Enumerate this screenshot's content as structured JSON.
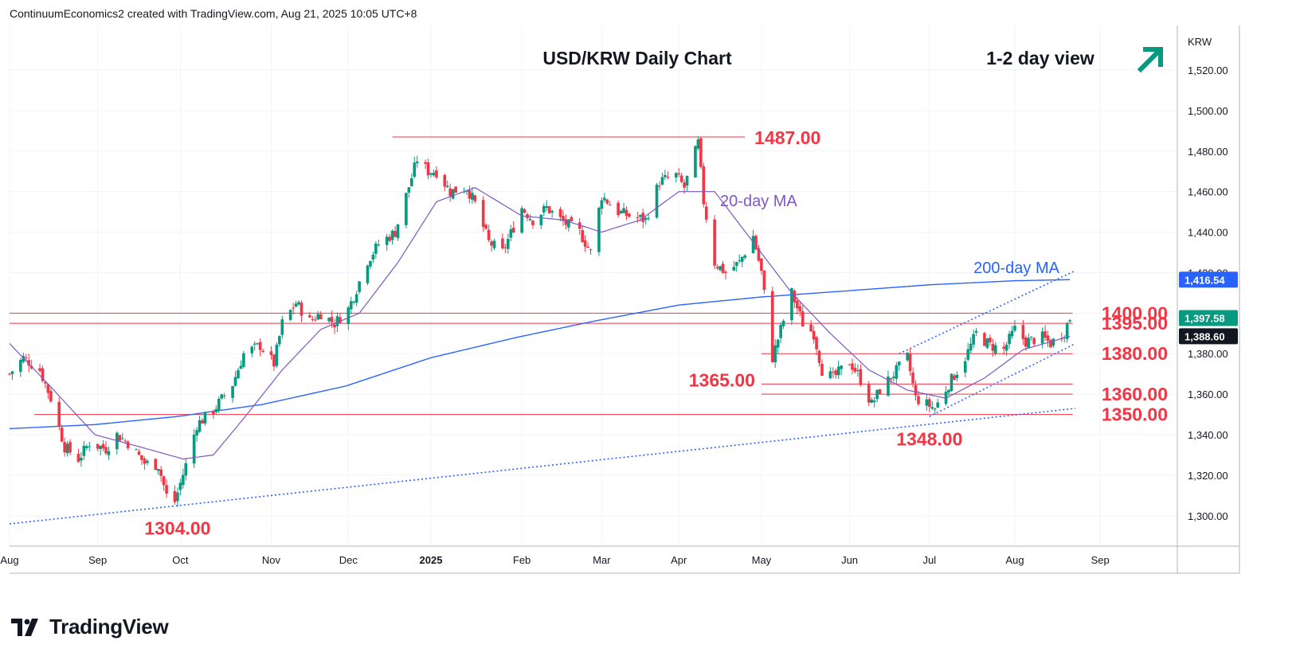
{
  "header": {
    "credit": "ContinuumEconomics2 created with TradingView.com, Aug 21, 2025 10:05 UTC+8"
  },
  "branding": {
    "name": "TradingView",
    "logo_icon": "tradingview-logo-icon"
  },
  "colors": {
    "up": "#089981",
    "down": "#f23645",
    "level": "#f23645",
    "ma20": "#7e57c2",
    "ma200": "#2962ff",
    "trend": "#2962ff",
    "arrow": "#089981",
    "price_tag": "#131722"
  },
  "chart_data": {
    "type": "candlestick",
    "title": "USD/KRW Daily Chart",
    "view_label": "1-2 day view",
    "view_icon": "arrow-up-right-icon",
    "currency": "KRW",
    "y_range": [
      1285,
      1542
    ],
    "y_ticks": [
      {
        "value": 1300,
        "label": "1,300.00"
      },
      {
        "value": 1320,
        "label": "1,320.00"
      },
      {
        "value": 1340,
        "label": "1,340.00"
      },
      {
        "value": 1360,
        "label": "1,360.00"
      },
      {
        "value": 1380,
        "label": "1,380.00"
      },
      {
        "value": 1400,
        "label": "1,400.00"
      },
      {
        "value": 1420,
        "label": "1,420.00"
      },
      {
        "value": 1440,
        "label": "1,440.00"
      },
      {
        "value": 1460,
        "label": "1,460.00"
      },
      {
        "value": 1480,
        "label": "1,480.00"
      },
      {
        "value": 1500,
        "label": "1,500.00"
      },
      {
        "value": 1520,
        "label": "1,520.00"
      }
    ],
    "x_range": [
      "2024-08-01",
      "2025-09-29"
    ],
    "x_ticks": [
      {
        "date": "2024-08-01",
        "label": "Aug",
        "bold": false
      },
      {
        "date": "2024-09-02",
        "label": "Sep",
        "bold": false
      },
      {
        "date": "2024-10-02",
        "label": "Oct",
        "bold": false
      },
      {
        "date": "2024-11-04",
        "label": "Nov",
        "bold": false
      },
      {
        "date": "2024-12-02",
        "label": "Dec",
        "bold": false
      },
      {
        "date": "2025-01-01",
        "label": "2025",
        "bold": true
      },
      {
        "date": "2025-02-03",
        "label": "Feb",
        "bold": false
      },
      {
        "date": "2025-03-04",
        "label": "Mar",
        "bold": false
      },
      {
        "date": "2025-04-01",
        "label": "Apr",
        "bold": false
      },
      {
        "date": "2025-05-01",
        "label": "May",
        "bold": false
      },
      {
        "date": "2025-06-02",
        "label": "Jun",
        "bold": false
      },
      {
        "date": "2025-07-01",
        "label": "Jul",
        "bold": false
      },
      {
        "date": "2025-08-01",
        "label": "Aug",
        "bold": false
      },
      {
        "date": "2025-09-01",
        "label": "Sep",
        "bold": false
      }
    ],
    "price_anchors": [
      [
        "2024-08-01",
        1370
      ],
      [
        "2024-08-06",
        1378
      ],
      [
        "2024-08-12",
        1372
      ],
      [
        "2024-08-16",
        1358
      ],
      [
        "2024-08-21",
        1334
      ],
      [
        "2024-08-26",
        1328
      ],
      [
        "2024-08-30",
        1336
      ],
      [
        "2024-09-05",
        1333
      ],
      [
        "2024-09-09",
        1340
      ],
      [
        "2024-09-13",
        1336
      ],
      [
        "2024-09-19",
        1326
      ],
      [
        "2024-09-24",
        1325
      ],
      [
        "2024-09-27",
        1310
      ],
      [
        "2024-09-30",
        1307
      ],
      [
        "2024-10-04",
        1325
      ],
      [
        "2024-10-08",
        1345
      ],
      [
        "2024-10-14",
        1352
      ],
      [
        "2024-10-21",
        1365
      ],
      [
        "2024-10-25",
        1380
      ],
      [
        "2024-10-31",
        1384
      ],
      [
        "2024-11-05",
        1375
      ],
      [
        "2024-11-08",
        1395
      ],
      [
        "2024-11-13",
        1405
      ],
      [
        "2024-11-18",
        1396
      ],
      [
        "2024-11-22",
        1400
      ],
      [
        "2024-11-27",
        1395
      ],
      [
        "2024-12-02",
        1402
      ],
      [
        "2024-12-05",
        1412
      ],
      [
        "2024-12-09",
        1426
      ],
      [
        "2024-12-13",
        1434
      ],
      [
        "2024-12-19",
        1440
      ],
      [
        "2024-12-23",
        1458
      ],
      [
        "2024-12-27",
        1476
      ],
      [
        "2024-12-31",
        1470
      ],
      [
        "2025-01-03",
        1470
      ],
      [
        "2025-01-08",
        1460
      ],
      [
        "2025-01-14",
        1462
      ],
      [
        "2025-01-17",
        1454
      ],
      [
        "2025-01-22",
        1435
      ],
      [
        "2025-01-27",
        1430
      ],
      [
        "2025-02-03",
        1452
      ],
      [
        "2025-02-07",
        1446
      ],
      [
        "2025-02-12",
        1452
      ],
      [
        "2025-02-18",
        1445
      ],
      [
        "2025-02-24",
        1440
      ],
      [
        "2025-02-28",
        1430
      ],
      [
        "2025-03-04",
        1458
      ],
      [
        "2025-03-10",
        1450
      ],
      [
        "2025-03-14",
        1448
      ],
      [
        "2025-03-20",
        1446
      ],
      [
        "2025-03-25",
        1465
      ],
      [
        "2025-03-31",
        1468
      ],
      [
        "2025-04-03",
        1462
      ],
      [
        "2025-04-08",
        1484
      ],
      [
        "2025-04-10",
        1455
      ],
      [
        "2025-04-14",
        1425
      ],
      [
        "2025-04-18",
        1420
      ],
      [
        "2025-04-23",
        1425
      ],
      [
        "2025-04-28",
        1438
      ],
      [
        "2025-05-01",
        1420
      ],
      [
        "2025-05-05",
        1378
      ],
      [
        "2025-05-08",
        1392
      ],
      [
        "2025-05-12",
        1410
      ],
      [
        "2025-05-16",
        1395
      ],
      [
        "2025-05-20",
        1390
      ],
      [
        "2025-05-23",
        1372
      ],
      [
        "2025-05-27",
        1368
      ],
      [
        "2025-06-02",
        1376
      ],
      [
        "2025-06-05",
        1370
      ],
      [
        "2025-06-10",
        1355
      ],
      [
        "2025-06-13",
        1362
      ],
      [
        "2025-06-18",
        1370
      ],
      [
        "2025-06-23",
        1378
      ],
      [
        "2025-06-26",
        1358
      ],
      [
        "2025-06-30",
        1355
      ],
      [
        "2025-07-03",
        1353
      ],
      [
        "2025-07-08",
        1365
      ],
      [
        "2025-07-14",
        1378
      ],
      [
        "2025-07-18",
        1390
      ],
      [
        "2025-07-23",
        1384
      ],
      [
        "2025-07-28",
        1382
      ],
      [
        "2025-08-01",
        1392
      ],
      [
        "2025-08-05",
        1386
      ],
      [
        "2025-08-11",
        1388
      ],
      [
        "2025-08-14",
        1385
      ],
      [
        "2025-08-19",
        1391
      ],
      [
        "2025-08-21",
        1397.58
      ]
    ],
    "ma20_anchors": [
      [
        "2024-08-01",
        1385
      ],
      [
        "2024-08-15",
        1365
      ],
      [
        "2024-09-01",
        1340
      ],
      [
        "2024-09-20",
        1333
      ],
      [
        "2024-10-03",
        1328
      ],
      [
        "2024-10-14",
        1330
      ],
      [
        "2024-10-25",
        1348
      ],
      [
        "2024-11-08",
        1372
      ],
      [
        "2024-11-22",
        1392
      ],
      [
        "2024-12-06",
        1400
      ],
      [
        "2024-12-20",
        1425
      ],
      [
        "2025-01-03",
        1455
      ],
      [
        "2025-01-17",
        1462
      ],
      [
        "2025-02-03",
        1448
      ],
      [
        "2025-02-18",
        1446
      ],
      [
        "2025-03-04",
        1440
      ],
      [
        "2025-03-18",
        1446
      ],
      [
        "2025-04-01",
        1460
      ],
      [
        "2025-04-14",
        1460
      ],
      [
        "2025-04-28",
        1435
      ],
      [
        "2025-05-12",
        1410
      ],
      [
        "2025-05-26",
        1390
      ],
      [
        "2025-06-09",
        1372
      ],
      [
        "2025-06-23",
        1362
      ],
      [
        "2025-07-07",
        1358
      ],
      [
        "2025-07-21",
        1368
      ],
      [
        "2025-08-04",
        1382
      ],
      [
        "2025-08-21",
        1388.6
      ]
    ],
    "ma200_anchors": [
      [
        "2024-08-01",
        1343
      ],
      [
        "2024-09-01",
        1345
      ],
      [
        "2024-10-01",
        1349
      ],
      [
        "2024-11-01",
        1355
      ],
      [
        "2024-12-01",
        1364
      ],
      [
        "2025-01-01",
        1378
      ],
      [
        "2025-02-01",
        1388
      ],
      [
        "2025-03-01",
        1396
      ],
      [
        "2025-04-01",
        1404
      ],
      [
        "2025-05-01",
        1408
      ],
      [
        "2025-06-01",
        1411
      ],
      [
        "2025-07-01",
        1414
      ],
      [
        "2025-08-01",
        1416
      ],
      [
        "2025-08-21",
        1416.54
      ]
    ],
    "levels": [
      {
        "value": 1487,
        "label": "1487.00",
        "from": "2024-12-18",
        "to": "2025-04-25",
        "label_pos": "right-of-line"
      },
      {
        "value": 1400,
        "label": "1400.00",
        "from": "2024-08-01",
        "to": "2025-08-22",
        "label_pos": "right"
      },
      {
        "value": 1395,
        "label": "1395.00",
        "from": "2024-08-01",
        "to": "2025-08-22",
        "label_pos": "right"
      },
      {
        "value": 1380,
        "label": "1380.00",
        "from": "2025-05-01",
        "to": "2025-08-22",
        "label_pos": "right"
      },
      {
        "value": 1365,
        "label": "1365.00",
        "from": "2025-05-01",
        "to": "2025-08-22",
        "label_pos": "left-of-line"
      },
      {
        "value": 1360,
        "label": "1360.00",
        "from": "2025-05-01",
        "to": "2025-08-22",
        "label_pos": "right"
      },
      {
        "value": 1350,
        "label": "1350.00",
        "from": "2024-08-10",
        "to": "2025-08-22",
        "label_pos": "right"
      }
    ],
    "annotations": [
      {
        "text": "1304.00",
        "date": "2024-10-01",
        "value": 1304,
        "anchor": "below"
      },
      {
        "text": "1348.00",
        "date": "2025-07-01",
        "value": 1348,
        "anchor": "below"
      },
      {
        "text": "20-day MA",
        "date": "2025-04-16",
        "value": 1456,
        "anchor": "label",
        "color_key": "ma20"
      },
      {
        "text": "200-day MA",
        "date": "2025-07-17",
        "value": 1423,
        "anchor": "label",
        "color_key": "ma200"
      }
    ],
    "trendlines": [
      {
        "name": "long-term support",
        "points": [
          [
            "2024-08-01",
            1296
          ],
          [
            "2025-08-23",
            1353
          ]
        ]
      },
      {
        "name": "channel support",
        "points": [
          [
            "2025-07-01",
            1349
          ],
          [
            "2025-08-23",
            1385
          ]
        ]
      },
      {
        "name": "channel resistance",
        "points": [
          [
            "2025-06-20",
            1380
          ],
          [
            "2025-08-23",
            1421
          ]
        ]
      }
    ],
    "price_tags": [
      {
        "value": 1416.54,
        "label": "1,416.54",
        "color_key": "ma200"
      },
      {
        "value": 1397.58,
        "label": "1,397.58",
        "color_key": "up"
      },
      {
        "value": 1388.6,
        "label": "1,388.60",
        "color_key": "price_tag"
      }
    ]
  }
}
